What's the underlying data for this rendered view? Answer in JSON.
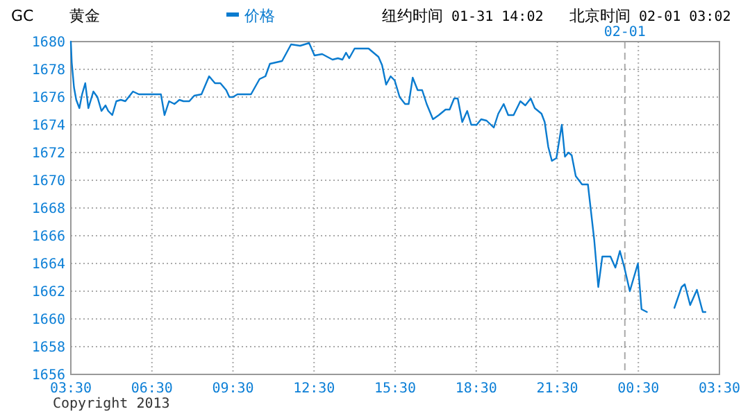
{
  "chart_data": {
    "type": "line",
    "title": "GC",
    "subtitle": "黄金",
    "annotations": [
      "纽约时间 01-31 14:02",
      "北京时间 02-01 03:02",
      "Copyright 2013"
    ],
    "x": [
      "2013-01-31T03:30",
      "2013-01-31T03:32",
      "2013-01-31T03:37",
      "2013-01-31T03:42",
      "2013-01-31T03:49",
      "2013-01-31T03:55",
      "2013-01-31T04:02",
      "2013-01-31T04:09",
      "2013-01-31T04:20",
      "2013-01-31T04:29",
      "2013-01-31T04:38",
      "2013-01-31T04:47",
      "2013-01-31T04:53",
      "2013-01-31T05:02",
      "2013-01-31T05:11",
      "2013-01-31T05:21",
      "2013-01-31T05:31",
      "2013-01-31T05:48",
      "2013-01-31T06:01",
      "2013-01-31T06:50",
      "2013-01-31T06:58",
      "2013-01-31T07:08",
      "2013-01-31T07:20",
      "2013-01-31T07:31",
      "2013-01-31T07:40",
      "2013-01-31T07:53",
      "2013-01-31T08:04",
      "2013-01-31T08:20",
      "2013-01-31T08:37",
      "2013-01-31T08:50",
      "2013-01-31T09:02",
      "2013-01-31T09:15",
      "2013-01-31T09:22",
      "2013-01-31T09:30",
      "2013-01-31T09:40",
      "2013-01-31T10:10",
      "2013-01-31T10:29",
      "2013-01-31T10:42",
      "2013-01-31T10:52",
      "2013-01-31T11:19",
      "2013-01-31T11:39",
      "2013-01-31T11:59",
      "2013-01-31T12:19",
      "2013-01-31T12:31",
      "2013-01-31T12:48",
      "2013-01-31T13:11",
      "2013-01-31T13:23",
      "2013-01-31T13:33",
      "2013-01-31T13:41",
      "2013-01-31T13:48",
      "2013-01-31T14:00",
      "2013-01-31T14:31",
      "2013-01-31T14:53",
      "2013-01-31T15:01",
      "2013-01-31T15:10",
      "2013-01-31T15:20",
      "2013-01-31T15:29",
      "2013-01-31T15:40",
      "2013-01-31T15:52",
      "2013-01-31T16:00",
      "2013-01-31T16:09",
      "2013-01-31T16:20",
      "2013-01-31T16:30",
      "2013-01-31T16:40",
      "2013-01-31T16:54",
      "2013-01-31T17:07",
      "2013-01-31T17:22",
      "2013-01-31T17:31",
      "2013-01-31T17:41",
      "2013-01-31T17:49",
      "2013-01-31T17:59",
      "2013-01-31T18:10",
      "2013-01-31T18:19",
      "2013-01-31T18:31",
      "2013-01-31T18:41",
      "2013-01-31T18:53",
      "2013-01-31T19:09",
      "2013-01-31T19:19",
      "2013-01-31T19:31",
      "2013-01-31T19:41",
      "2013-01-31T19:53",
      "2013-01-31T20:08",
      "2013-01-31T20:19",
      "2013-01-31T20:31",
      "2013-01-31T20:40",
      "2013-01-31T20:55",
      "2013-01-31T21:02",
      "2013-01-31T21:10",
      "2013-01-31T21:18",
      "2013-01-31T21:28",
      "2013-01-31T21:35",
      "2013-01-31T21:40",
      "2013-01-31T21:47",
      "2013-01-31T21:55",
      "2013-01-31T22:02",
      "2013-01-31T22:11",
      "2013-01-31T22:25",
      "2013-01-31T22:38",
      "2013-01-31T22:52",
      "2013-01-31T23:01",
      "2013-01-31T23:10",
      "2013-01-31T23:28",
      "2013-01-31T23:39",
      "2013-01-31T23:49",
      "2013-01-31T23:59",
      "2013-02-01T00:11",
      "2013-02-01T00:29",
      "2013-02-01T00:37",
      "2013-02-01T00:49",
      "2013-02-01T01:18",
      "2013-02-01T01:50",
      "2013-02-01T02:06",
      "2013-02-01T02:13",
      "2013-02-01T02:25",
      "2013-02-01T02:40",
      "2013-02-01T02:53",
      "2013-02-01T02:59"
    ],
    "series": [
      {
        "name": "价格",
        "color": "#0a7bcf",
        "values": [
          1680,
          1678.5,
          1676.7,
          1675.8,
          1675.2,
          1676.2,
          1677,
          1675.2,
          1676.4,
          1676,
          1675,
          1675.4,
          1675,
          1674.7,
          1675.7,
          1675.8,
          1675.7,
          1676.4,
          1676.2,
          1676.2,
          1674.7,
          1675.7,
          1675.5,
          1675.8,
          1675.7,
          1675.7,
          1676.1,
          1676.2,
          1677.5,
          1677,
          1677,
          1676.5,
          1676,
          1676,
          1676.2,
          1676.2,
          1677.3,
          1677.5,
          1678.4,
          1678.6,
          1679.8,
          1679.7,
          1679.9,
          1679,
          1679.1,
          1678.7,
          1678.8,
          1678.7,
          1679.2,
          1678.8,
          1679.5,
          1679.5,
          1678.9,
          1678.3,
          1676.9,
          1677.5,
          1677.2,
          1676,
          1675.5,
          1675.5,
          1677.4,
          1676.5,
          1676.5,
          1675.5,
          1674.4,
          1674.7,
          1675.1,
          1675.1,
          1675.9,
          1675.9,
          1674.2,
          1675,
          1674,
          1674,
          1674.4,
          1674.3,
          1673.8,
          1674.8,
          1675.5,
          1674.7,
          1674.7,
          1675.7,
          1675.4,
          1675.9,
          1675.2,
          1674.8,
          1674.2,
          1672.4,
          1671.4,
          1671.6,
          1673,
          1674,
          1671.7,
          1672,
          1671.8,
          1670.3,
          1669.7,
          1669.7,
          1665.7,
          1662.3,
          1664.5,
          1664.5,
          1663.7,
          1664.9,
          1663.7,
          1662,
          1664,
          1660.7,
          1660.5,
          null,
          1660.8,
          1662.3,
          1662.5,
          1661,
          1662.1,
          1660.5,
          1660.5
        ]
      }
    ],
    "xlim": [
      "2013-01-31T03:30",
      "2013-02-01T03:30"
    ],
    "xticks": [
      {
        "value": "2013-01-31T03:30",
        "label": "03:30"
      },
      {
        "value": "2013-01-31T06:30",
        "label": "06:30"
      },
      {
        "value": "2013-01-31T09:30",
        "label": "09:30"
      },
      {
        "value": "2013-01-31T12:30",
        "label": "12:30"
      },
      {
        "value": "2013-01-31T15:30",
        "label": "15:30"
      },
      {
        "value": "2013-01-31T18:30",
        "label": "18:30"
      },
      {
        "value": "2013-01-31T21:30",
        "label": "21:30"
      },
      {
        "value": "2013-02-01T00:30",
        "label": "00:30"
      },
      {
        "value": "2013-02-01T03:30",
        "label": "03:30"
      }
    ],
    "ylim": [
      1656,
      1680
    ],
    "yticks": [
      1656,
      1658,
      1660,
      1662,
      1664,
      1666,
      1668,
      1670,
      1672,
      1674,
      1676,
      1678,
      1680
    ],
    "ref_lines": [
      {
        "axis": "x",
        "value": "2013-02-01T00:00",
        "label": "02-01",
        "color": "#aaaaaa",
        "line_style": "dashed"
      }
    ],
    "grid": true,
    "legend": "top",
    "line_style": "solid",
    "marker": "none"
  }
}
